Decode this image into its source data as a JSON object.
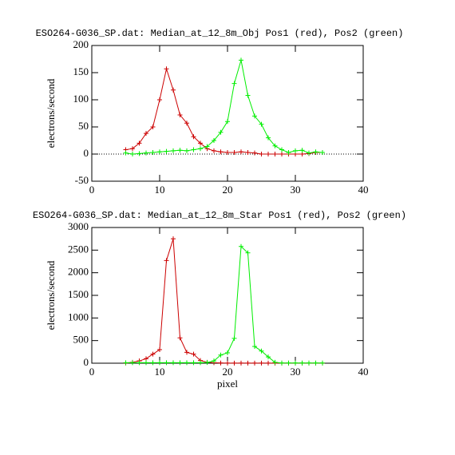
{
  "chart_data": [
    {
      "type": "line",
      "title": "ESO264-G036_SP.dat: Median_at_12_8m_Obj Pos1 (red), Pos2 (green)",
      "y_label": "electrons/second",
      "x": [
        5,
        6,
        7,
        8,
        9,
        10,
        11,
        12,
        13,
        14,
        15,
        16,
        17,
        18,
        19,
        20,
        21,
        22,
        23,
        24,
        25,
        26,
        27,
        28,
        29,
        30,
        31,
        32,
        33,
        34
      ],
      "series": [
        {
          "name": "Pos1",
          "color": "#cc0000",
          "values": [
            8,
            10,
            20,
            38,
            50,
            100,
            157,
            118,
            72,
            57,
            32,
            20,
            10,
            6,
            4,
            3,
            3,
            4,
            3,
            2,
            0,
            0,
            0,
            0,
            0,
            0,
            0,
            1,
            3,
            3
          ]
        },
        {
          "name": "Pos2",
          "color": "#00ee00",
          "values": [
            2,
            0,
            1,
            2,
            3,
            4,
            5,
            6,
            7,
            6,
            8,
            10,
            14,
            25,
            40,
            60,
            130,
            173,
            108,
            70,
            55,
            30,
            15,
            8,
            3,
            6,
            7,
            2,
            4,
            3
          ]
        }
      ],
      "xlim": [
        0,
        40
      ],
      "xticks": [
        0,
        10,
        20,
        30,
        40
      ],
      "ylim": [
        -50,
        200
      ],
      "yticks": [
        -50,
        0,
        50,
        100,
        150,
        200
      ],
      "hline": 0
    },
    {
      "type": "line",
      "title": "ESO264-G036_SP.dat: Median_at_12_8m_Star Pos1 (red), Pos2 (green)",
      "y_label": "electrons/second",
      "x_label": "pixel",
      "x": [
        5,
        6,
        7,
        8,
        9,
        10,
        11,
        12,
        13,
        14,
        15,
        16,
        17,
        18,
        19,
        20,
        21,
        22,
        23,
        24,
        25,
        26,
        27,
        28,
        29,
        30,
        31,
        32,
        33,
        34
      ],
      "series": [
        {
          "name": "Pos1",
          "color": "#cc0000",
          "values": [
            5,
            20,
            50,
            100,
            200,
            300,
            2270,
            2750,
            560,
            240,
            200,
            60,
            20,
            10,
            5,
            3,
            2,
            2,
            2,
            2,
            2,
            2,
            2,
            2,
            2,
            2,
            2,
            2,
            2,
            2
          ]
        },
        {
          "name": "Pos2",
          "color": "#00ee00",
          "values": [
            10,
            10,
            10,
            10,
            10,
            10,
            10,
            10,
            10,
            10,
            10,
            10,
            15,
            50,
            180,
            230,
            550,
            2580,
            2440,
            370,
            270,
            140,
            20,
            5,
            5,
            5,
            5,
            5,
            5,
            5
          ]
        }
      ],
      "xlim": [
        0,
        40
      ],
      "xticks": [
        0,
        10,
        20,
        30,
        40
      ],
      "ylim": [
        0,
        3000
      ],
      "yticks": [
        0,
        500,
        1000,
        1500,
        2000,
        2500,
        3000
      ]
    }
  ]
}
